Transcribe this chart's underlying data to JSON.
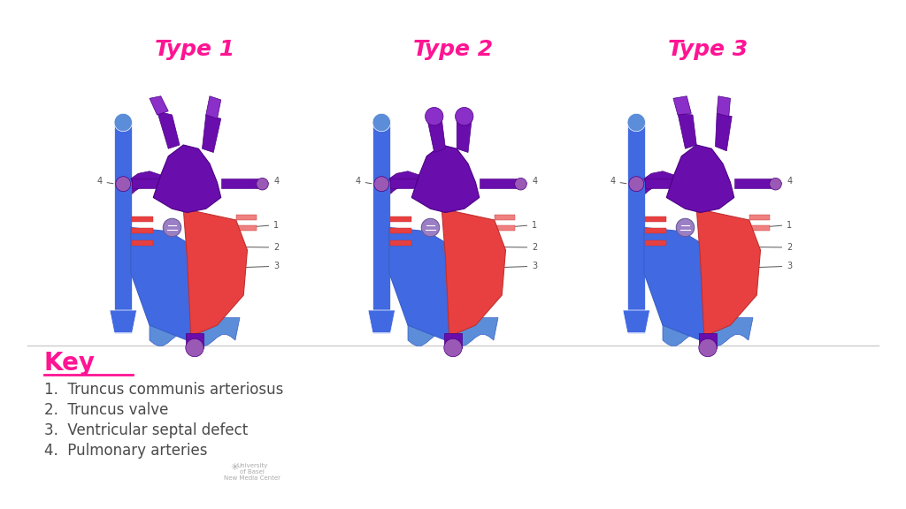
{
  "title_color": "#FF1493",
  "key_color": "#FF1493",
  "text_color": "#4a4a4a",
  "bg_color": "#ffffff",
  "types": [
    "Type 1",
    "Type 2",
    "Type 3"
  ],
  "key_title": "Key",
  "key_items": [
    "1.  Truncus communis arteriosus",
    "2.  Truncus valve",
    "3.  Ventricular septal defect",
    "4.  Pulmonary arteries"
  ],
  "purple_dark": "#6A0DAD",
  "purple_mid": "#8B2FC9",
  "purple_light": "#9B59B6",
  "blue_dark": "#4169E1",
  "blue_mid": "#5B8DD9",
  "red_main": "#E84040",
  "red_light": "#F08080",
  "pink_light": "#FFB6C1",
  "line_color": "#555555",
  "label_color": "#555555"
}
